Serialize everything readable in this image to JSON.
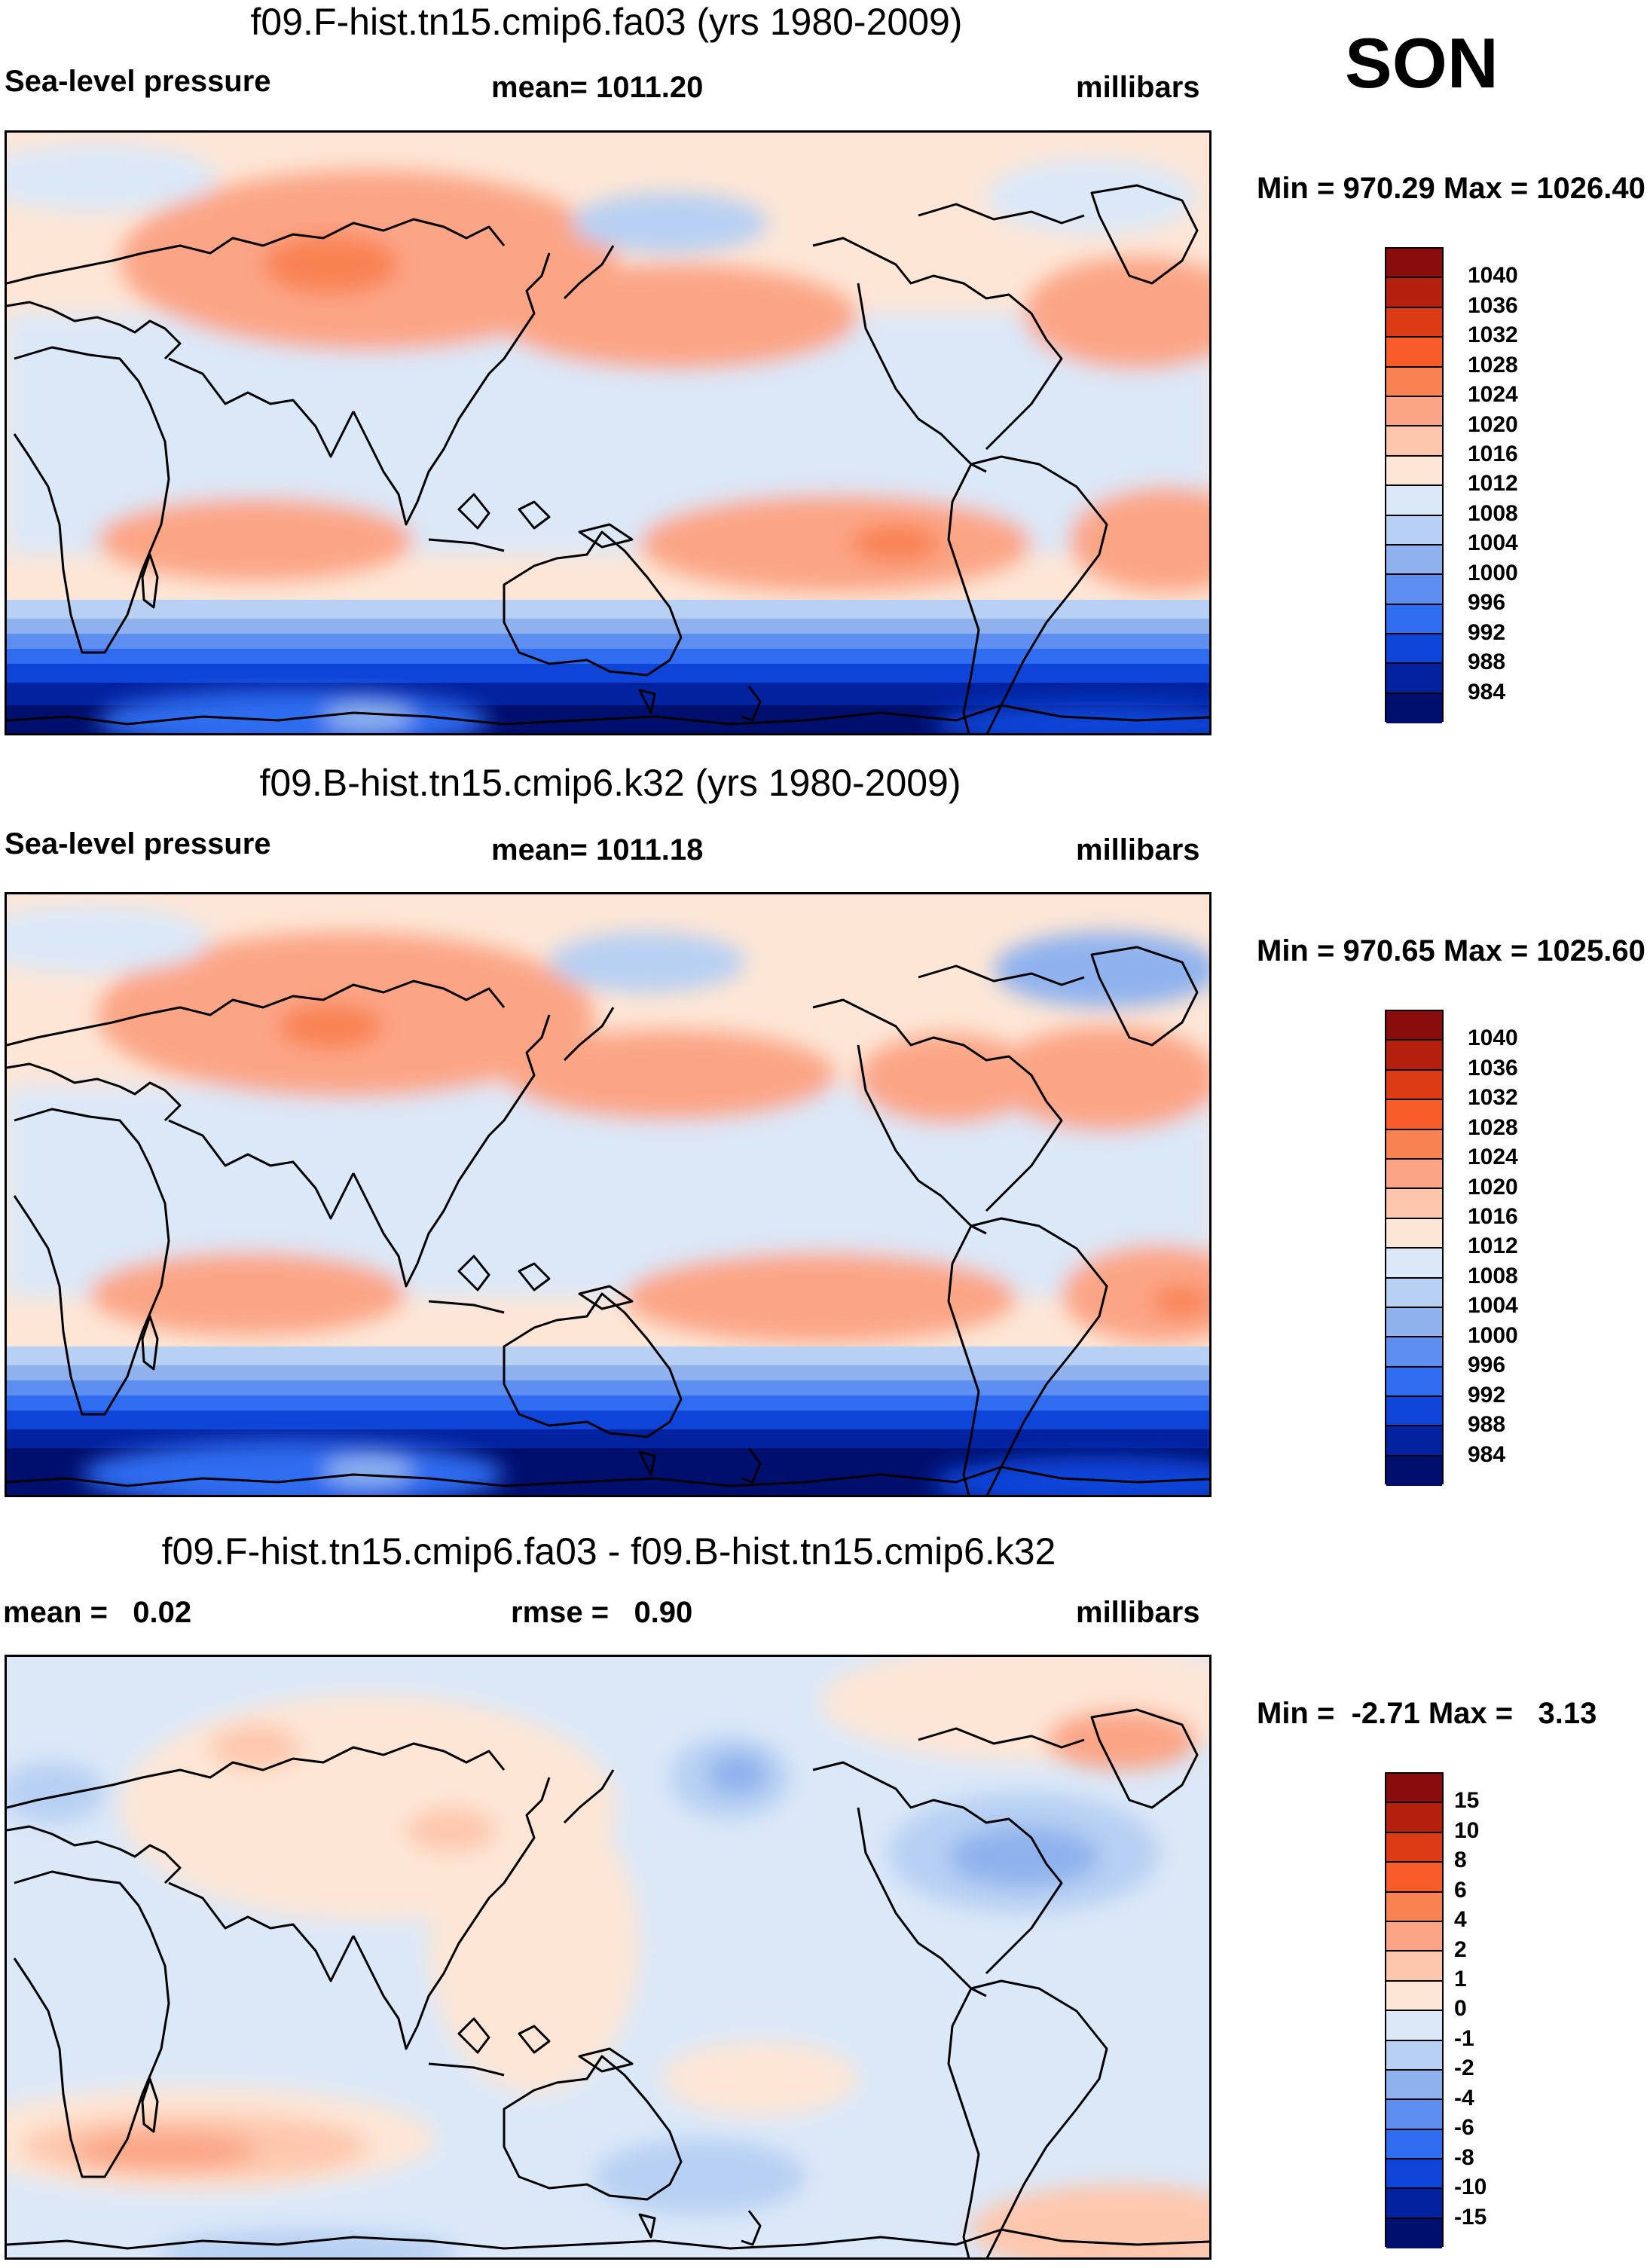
{
  "season": "SON",
  "panels": [
    {
      "id": "model1",
      "title": "f09.F-hist.tn15.cmip6.fa03 (yrs 1980-2009)",
      "left_label": "Sea-level pressure",
      "center_label": "mean= 1011.20",
      "right_label": "millibars",
      "minmax": "Min = 970.29 Max = 1026.40",
      "colorbar": {
        "labels": [
          "1040",
          "1036",
          "1032",
          "1028",
          "1024",
          "1020",
          "1016",
          "1012",
          "1008",
          "1004",
          "1000",
          "996",
          "992",
          "988",
          "984"
        ],
        "colors": [
          "#8a0d0d",
          "#b5200e",
          "#dd3a16",
          "#f85c2a",
          "#f98252",
          "#fba586",
          "#fdc7ad",
          "#fde6d6",
          "#dbe8f8",
          "#b7d0f3",
          "#8fb2ee",
          "#5e8ff0",
          "#2f6cf0",
          "#0e45d8",
          "#03229f",
          "#000f6e"
        ]
      }
    },
    {
      "id": "model2",
      "title": "f09.B-hist.tn15.cmip6.k32 (yrs 1980-2009)",
      "left_label": "Sea-level pressure",
      "center_label": "mean= 1011.18",
      "right_label": "millibars",
      "minmax": "Min = 970.65 Max = 1025.60",
      "colorbar": {
        "labels": [
          "1040",
          "1036",
          "1032",
          "1028",
          "1024",
          "1020",
          "1016",
          "1012",
          "1008",
          "1004",
          "1000",
          "996",
          "992",
          "988",
          "984"
        ],
        "colors": [
          "#8a0d0d",
          "#b5200e",
          "#dd3a16",
          "#f85c2a",
          "#f98252",
          "#fba586",
          "#fdc7ad",
          "#fde6d6",
          "#dbe8f8",
          "#b7d0f3",
          "#8fb2ee",
          "#5e8ff0",
          "#2f6cf0",
          "#0e45d8",
          "#03229f",
          "#000f6e"
        ]
      }
    },
    {
      "id": "difference",
      "title": "f09.F-hist.tn15.cmip6.fa03 - f09.B-hist.tn15.cmip6.k32",
      "left_label": "mean =   0.02",
      "center_label": "rmse =   0.90",
      "right_label": "millibars",
      "minmax": "Min =  -2.71 Max =   3.13",
      "colorbar": {
        "labels": [
          "15",
          "10",
          "8",
          "6",
          "4",
          "2",
          "1",
          "0",
          "-1",
          "-2",
          "-4",
          "-6",
          "-8",
          "-10",
          "-15"
        ],
        "colors": [
          "#8a0d0d",
          "#b5200e",
          "#dd3a16",
          "#f85c2a",
          "#f98252",
          "#fba586",
          "#fdc7ad",
          "#fde6d6",
          "#dbe8f8",
          "#b7d0f3",
          "#8fb2ee",
          "#5e8ff0",
          "#2f6cf0",
          "#0e45d8",
          "#03229f",
          "#000f6e"
        ]
      }
    }
  ]
}
